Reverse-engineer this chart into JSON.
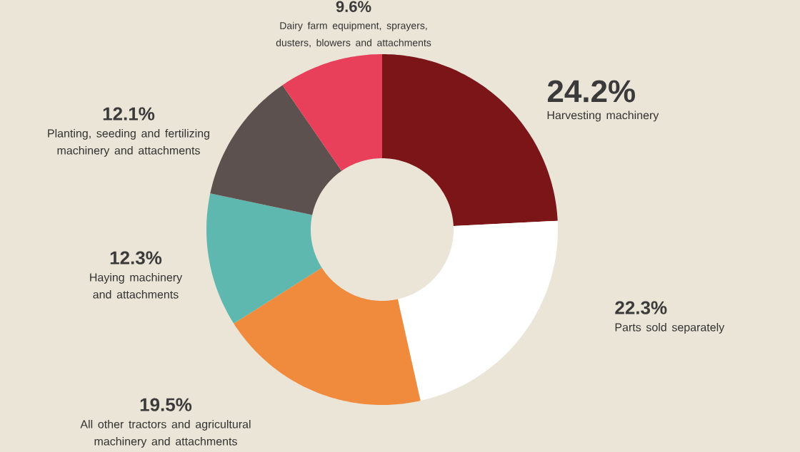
{
  "chart_data": {
    "type": "donut",
    "categories": [
      "Harvesting machinery",
      "Parts sold separately",
      "All other tractors and agricultural machinery and attachments",
      "Haying machinery and attachments",
      "Planting, seeding and fertilizing machinery and attachments",
      "Dairy farm equipment, sprayers, dusters, blowers and attachments"
    ],
    "values": [
      24.2,
      22.3,
      19.5,
      12.3,
      12.1,
      9.6
    ],
    "value_labels": [
      "24.2%",
      "22.3%",
      "19.5%",
      "12.3%",
      "12.1%",
      "9.6%"
    ],
    "colors": [
      "#7b1518",
      "#ffffff",
      "#f08a3c",
      "#5fb8b0",
      "#5d5150",
      "#e8405a"
    ]
  }
}
